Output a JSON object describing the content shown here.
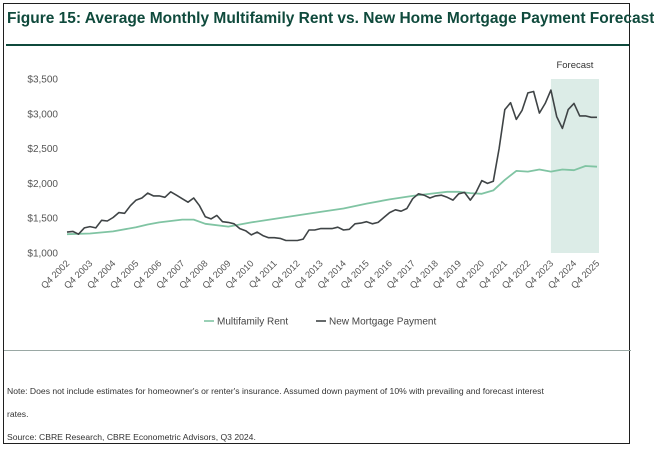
{
  "title": "Figure 15: Average Monthly Multifamily Rent vs. New Home Mortgage Payment Forecast",
  "note_line1": "Note: Does not include estimates for homeowner's or renter's insurance. Assumed down payment of 10% with prevailing and forecast interest",
  "note_line2": "rates.",
  "source": "Source: CBRE Research, CBRE Econometric Advisors, Q3 2024.",
  "colors": {
    "title": "#0f4a3c",
    "rent": "#80c4a3",
    "mortgage": "#3f4446",
    "forecast_band": "#dcece7",
    "axis_text": "#555555"
  },
  "chart_data": {
    "type": "line",
    "ylim": [
      1000,
      3500
    ],
    "xlim": [
      2002.75,
      2025.75
    ],
    "y_ticks": [
      1000,
      1500,
      2000,
      2500,
      3000,
      3500
    ],
    "y_tick_labels": [
      "$1,000",
      "$1,500",
      "$2,000",
      "$2,500",
      "$3,000",
      "$3,500"
    ],
    "x_ticks": [
      2002.75,
      2003.75,
      2004.75,
      2005.75,
      2006.75,
      2007.75,
      2008.75,
      2009.75,
      2010.75,
      2011.75,
      2012.75,
      2013.75,
      2014.75,
      2015.75,
      2016.75,
      2017.75,
      2018.75,
      2019.75,
      2020.75,
      2021.75,
      2022.75,
      2023.75,
      2024.75,
      2025.75
    ],
    "x_tick_labels": [
      "Q4 2002",
      "Q4 2003",
      "Q4 2004",
      "Q4 2005",
      "Q4 2006",
      "Q4 2007",
      "Q4 2008",
      "Q4 2009",
      "Q4 2010",
      "Q4 2011",
      "Q4 2012",
      "Q4 2013",
      "Q4 2014",
      "Q4 2015",
      "Q4 2016",
      "Q4 2017",
      "Q4 2018",
      "Q4 2019",
      "Q4 2020",
      "Q4 2021",
      "Q4 2022",
      "Q4 2023",
      "Q4 2024",
      "Q4 2025"
    ],
    "forecast_region": {
      "label": "Forecast",
      "x_start": 2023.75,
      "x_end": 2025.75
    },
    "legend_position": "bottom-center",
    "grid": false,
    "series": [
      {
        "name": "Multifamily Rent",
        "color": "#80c4a3",
        "x": [
          2002.75,
          2003.75,
          2004.75,
          2005.75,
          2006.25,
          2006.75,
          2007.75,
          2008.25,
          2008.75,
          2009.75,
          2010.75,
          2011.75,
          2012.75,
          2013.75,
          2014.75,
          2015.75,
          2016.75,
          2017.75,
          2018.75,
          2019.25,
          2019.75,
          2020.25,
          2020.75,
          2021.25,
          2021.75,
          2022.25,
          2022.75,
          2023.25,
          2023.75,
          2024.25,
          2024.75,
          2025.25,
          2025.75
        ],
        "y": [
          1270,
          1280,
          1310,
          1370,
          1410,
          1440,
          1480,
          1480,
          1420,
          1380,
          1440,
          1490,
          1540,
          1590,
          1640,
          1710,
          1770,
          1820,
          1860,
          1880,
          1880,
          1860,
          1850,
          1900,
          2050,
          2180,
          2170,
          2200,
          2170,
          2200,
          2190,
          2250,
          2240
        ]
      },
      {
        "name": "New Mortgage Payment",
        "color": "#3f4446",
        "x": [
          2002.75,
          2003.0,
          2003.25,
          2003.5,
          2003.75,
          2004.0,
          2004.25,
          2004.5,
          2004.75,
          2005.0,
          2005.25,
          2005.5,
          2005.75,
          2006.0,
          2006.25,
          2006.5,
          2006.75,
          2007.0,
          2007.25,
          2007.5,
          2007.75,
          2008.0,
          2008.25,
          2008.5,
          2008.75,
          2009.0,
          2009.25,
          2009.5,
          2009.75,
          2010.0,
          2010.25,
          2010.5,
          2010.75,
          2011.0,
          2011.25,
          2011.5,
          2011.75,
          2012.0,
          2012.25,
          2012.5,
          2012.75,
          2013.0,
          2013.25,
          2013.5,
          2013.75,
          2014.0,
          2014.25,
          2014.5,
          2014.75,
          2015.0,
          2015.25,
          2015.5,
          2015.75,
          2016.0,
          2016.25,
          2016.5,
          2016.75,
          2017.0,
          2017.25,
          2017.5,
          2017.75,
          2018.0,
          2018.25,
          2018.5,
          2018.75,
          2019.0,
          2019.25,
          2019.5,
          2019.75,
          2020.0,
          2020.25,
          2020.5,
          2020.75,
          2021.0,
          2021.25,
          2021.5,
          2021.75,
          2022.0,
          2022.25,
          2022.5,
          2022.75,
          2023.0,
          2023.25,
          2023.5,
          2023.75,
          2024.0,
          2024.25,
          2024.5,
          2024.75,
          2025.0,
          2025.25,
          2025.5,
          2025.75
        ],
        "y": [
          1300,
          1310,
          1270,
          1360,
          1380,
          1360,
          1470,
          1460,
          1510,
          1580,
          1570,
          1680,
          1760,
          1790,
          1860,
          1820,
          1820,
          1800,
          1880,
          1830,
          1780,
          1730,
          1790,
          1680,
          1520,
          1490,
          1540,
          1450,
          1440,
          1420,
          1350,
          1320,
          1260,
          1300,
          1250,
          1220,
          1220,
          1210,
          1180,
          1180,
          1180,
          1200,
          1330,
          1330,
          1350,
          1350,
          1350,
          1370,
          1330,
          1340,
          1420,
          1430,
          1450,
          1420,
          1440,
          1510,
          1580,
          1620,
          1600,
          1640,
          1780,
          1850,
          1830,
          1790,
          1820,
          1830,
          1800,
          1760,
          1850,
          1870,
          1760,
          1870,
          2040,
          2000,
          2030,
          2500,
          3060,
          3160,
          2920,
          3050,
          3300,
          3320,
          3010,
          3150,
          3340,
          2960,
          2790,
          3060,
          3150,
          2970,
          2970,
          2950,
          2950
        ]
      }
    ]
  }
}
